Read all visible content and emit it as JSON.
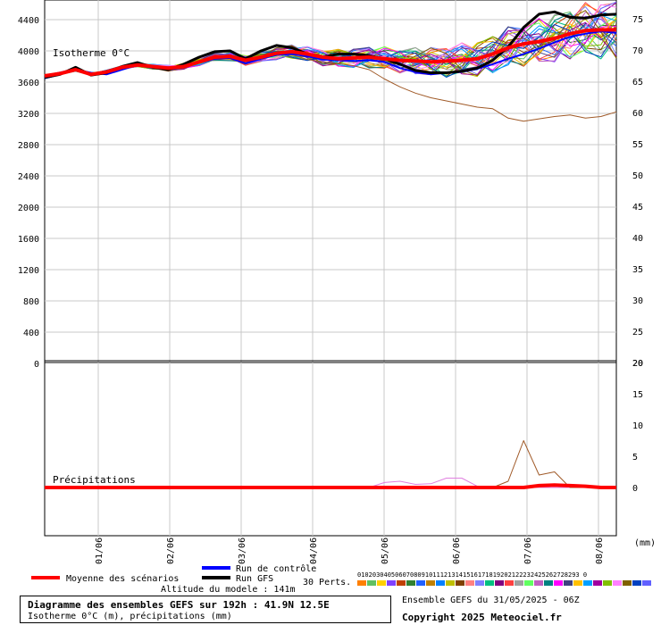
{
  "chart_data": {
    "type": "line",
    "title": "Diagramme des ensembles GEFS sur 192h : 41.9N 12.5E",
    "subtitle": "Isotherme 0°C (m), précipitations (mm)",
    "run_info": "Ensemble GEFS du 31/05/2025 - 06Z",
    "copyright": "Copyright 2025 Meteociel.fr",
    "altitude_label": "Altitude du modele : 141m",
    "x_ticks": [
      "01/06",
      "02/06",
      "03/06",
      "04/06",
      "05/06",
      "06/06",
      "07/06",
      "08/06"
    ],
    "x_unit": "(mm)",
    "top_panel": {
      "label": "Isotherme 0°C",
      "left_ticks": [
        "4400",
        "4000",
        "3600",
        "3200",
        "2800",
        "2400",
        "2000",
        "1600",
        "1200",
        "800",
        "400",
        "0"
      ],
      "right_ticks": [
        "75",
        "70",
        "65",
        "60",
        "55",
        "50",
        "45",
        "40",
        "35",
        "30",
        "25",
        "20"
      ],
      "ylim": [
        0,
        4600
      ],
      "step_hours": 6,
      "series": [
        {
          "name": "Moyenne des scénarios",
          "color": "#ff0000",
          "values": [
            3680,
            3710,
            3760,
            3700,
            3730,
            3790,
            3820,
            3800,
            3780,
            3800,
            3860,
            3920,
            3930,
            3880,
            3920,
            3970,
            3990,
            3960,
            3920,
            3900,
            3910,
            3920,
            3900,
            3880,
            3870,
            3860,
            3870,
            3880,
            3900,
            3960,
            4040,
            4090,
            4120,
            4160,
            4220,
            4260,
            4270,
            4270
          ]
        },
        {
          "name": "Run de contrôle",
          "color": "#0000ff",
          "values": [
            3650,
            3700,
            3760,
            3720,
            3700,
            3760,
            3820,
            3790,
            3760,
            3790,
            3850,
            3900,
            3910,
            3840,
            3900,
            3950,
            3960,
            3930,
            3890,
            3880,
            3870,
            3880,
            3860,
            3780,
            3730,
            3700,
            3720,
            3730,
            3770,
            3830,
            3900,
            3960,
            4030,
            4110,
            4180,
            4220,
            4250,
            4230
          ]
        },
        {
          "name": "Run GFS",
          "color": "#000000",
          "values": [
            3660,
            3700,
            3790,
            3690,
            3720,
            3800,
            3850,
            3790,
            3760,
            3830,
            3920,
            3990,
            4000,
            3900,
            4000,
            4070,
            4040,
            3960,
            3920,
            3960,
            3960,
            3940,
            3900,
            3830,
            3750,
            3720,
            3720,
            3740,
            3780,
            3880,
            4050,
            4300,
            4470,
            4500,
            4430,
            4420,
            4460,
            4470
          ]
        }
      ],
      "perturbation_sample": {
        "name": "01",
        "color": "#ff8000",
        "values": [
          3690,
          3720,
          3780,
          3700,
          3740,
          3800,
          3830,
          3780,
          3740,
          3780,
          3840,
          3890,
          3900,
          3830,
          3900,
          3960,
          3950,
          3890,
          3860,
          3840,
          3810,
          3760,
          3640,
          3540,
          3460,
          3400,
          3360,
          3320,
          3280,
          3260,
          3140,
          3100,
          3130,
          3160,
          3180,
          3140,
          3160,
          3220
        ]
      }
    },
    "bottom_panel": {
      "label": "Précipitations",
      "right_ticks": [
        "20",
        "15",
        "10",
        "5",
        "0"
      ],
      "ylim": [
        -8,
        20
      ],
      "series": [
        {
          "name": "Moyenne des scénarios",
          "color": "#ff0000",
          "values": [
            0,
            0,
            0,
            0,
            0,
            0,
            0,
            0,
            0,
            0,
            0,
            0,
            0,
            0,
            0,
            0,
            0,
            0,
            0,
            0,
            0,
            0,
            0,
            0,
            0,
            0,
            0,
            0,
            0,
            0,
            0,
            0,
            0.3,
            0.4,
            0.3,
            0.2,
            0,
            0
          ]
        },
        {
          "name": "01",
          "color": "#a05a28",
          "values": [
            0,
            0,
            0,
            0,
            0,
            0,
            0,
            0,
            0,
            0,
            0,
            0,
            0,
            0,
            0,
            0,
            0,
            0,
            0,
            0,
            0,
            0,
            0,
            0,
            0,
            0,
            0,
            0,
            0,
            0,
            1,
            7.5,
            2,
            2.5,
            0,
            0,
            0,
            0
          ]
        },
        {
          "name": "02",
          "color": "#e080e0",
          "values": [
            0,
            0,
            0,
            0,
            0,
            0,
            0,
            0,
            0,
            0,
            0,
            0,
            0,
            0,
            0,
            0,
            0,
            0,
            0,
            0,
            0,
            0,
            0.8,
            1,
            0.5,
            0.6,
            1.5,
            1.5,
            0.2,
            0,
            0,
            0,
            0,
            0,
            0,
            0,
            0,
            0
          ]
        }
      ]
    },
    "legend": [
      {
        "label": "Moyenne des scénarios",
        "color": "#ff0000"
      },
      {
        "label": "Run de contrôle",
        "color": "#0000ff"
      },
      {
        "label": "Run GFS",
        "color": "#000000"
      }
    ],
    "perts": {
      "label": "30 Perts.",
      "numbers": "01020304050607080910111213141516171819202122232425262728293 0",
      "colors": [
        "#ff8000",
        "#60c060",
        "#ffd000",
        "#8040ff",
        "#c04000",
        "#308030",
        "#2060ff",
        "#c08000",
        "#0080ff",
        "#c0c000",
        "#804000",
        "#ff8080",
        "#8080ff",
        "#00c080",
        "#800080",
        "#ff4040",
        "#a0a0a0",
        "#60ff60",
        "#c060c0",
        "#008080",
        "#ff00ff",
        "#404080",
        "#ffc000",
        "#00a0ff",
        "#a000a0",
        "#80c000",
        "#ff80ff",
        "#806000",
        "#0040c0",
        "#6060ff"
      ]
    }
  }
}
